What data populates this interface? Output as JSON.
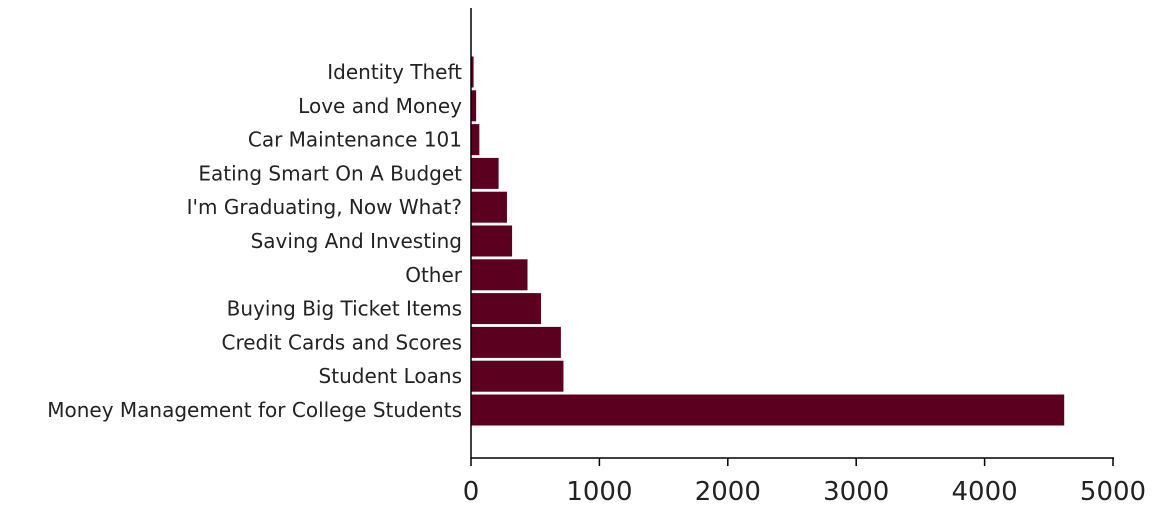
{
  "chart_data": {
    "type": "bar",
    "orientation": "horizontal",
    "title": "",
    "xlabel": "",
    "ylabel": "",
    "categories": [
      "Money Management for College Students",
      "Student Loans",
      "Credit Cards and Scores",
      "Buying Big Ticket Items",
      "Other",
      "Saving And Investing",
      "I'm Graduating, Now What?",
      "Eating Smart On A Budget",
      "Car Maintenance 101",
      "Love and Money",
      "Identity Theft"
    ],
    "values": [
      4620,
      720,
      700,
      545,
      440,
      320,
      280,
      215,
      65,
      40,
      20
    ],
    "xlim": [
      0,
      5000
    ],
    "xticks": [
      "0",
      "1000",
      "2000",
      "3000",
      "4000",
      "5000"
    ],
    "bar_color": "#5c0020",
    "grid": false,
    "legend": "none"
  }
}
